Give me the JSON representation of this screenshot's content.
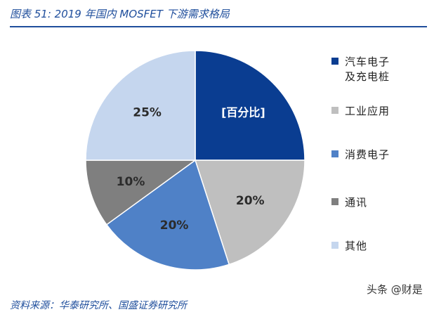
{
  "header": {
    "title": "图表 51:  2019 年国内 MOSFET 下游需求格局"
  },
  "chart_data": {
    "type": "pie",
    "title": "图表 51:  2019 年国内 MOSFET 下游需求格局",
    "unit_label": "[百分比]",
    "categories": [
      "汽车电子及充电桩",
      "工业应用",
      "消费电子",
      "通讯",
      "其他"
    ],
    "values": [
      25,
      20,
      20,
      10,
      25
    ],
    "data_labels": [
      "",
      "20%",
      "20%",
      "10%",
      "25%"
    ],
    "legend_labels": [
      "汽车电子\n及充电桩",
      "工业应用",
      "消费电子",
      "通讯",
      "其他"
    ],
    "colors": [
      "#0a3d91",
      "#bfbfbf",
      "#4f81c7",
      "#7f7f7f",
      "#c5d6ee"
    ],
    "start_angle_deg": 0,
    "direction": "clockwise",
    "legend_position": "right"
  },
  "footer": {
    "source": "资料来源：华泰研究所、国盛证券研究所",
    "watermark": "头条 @财是"
  }
}
